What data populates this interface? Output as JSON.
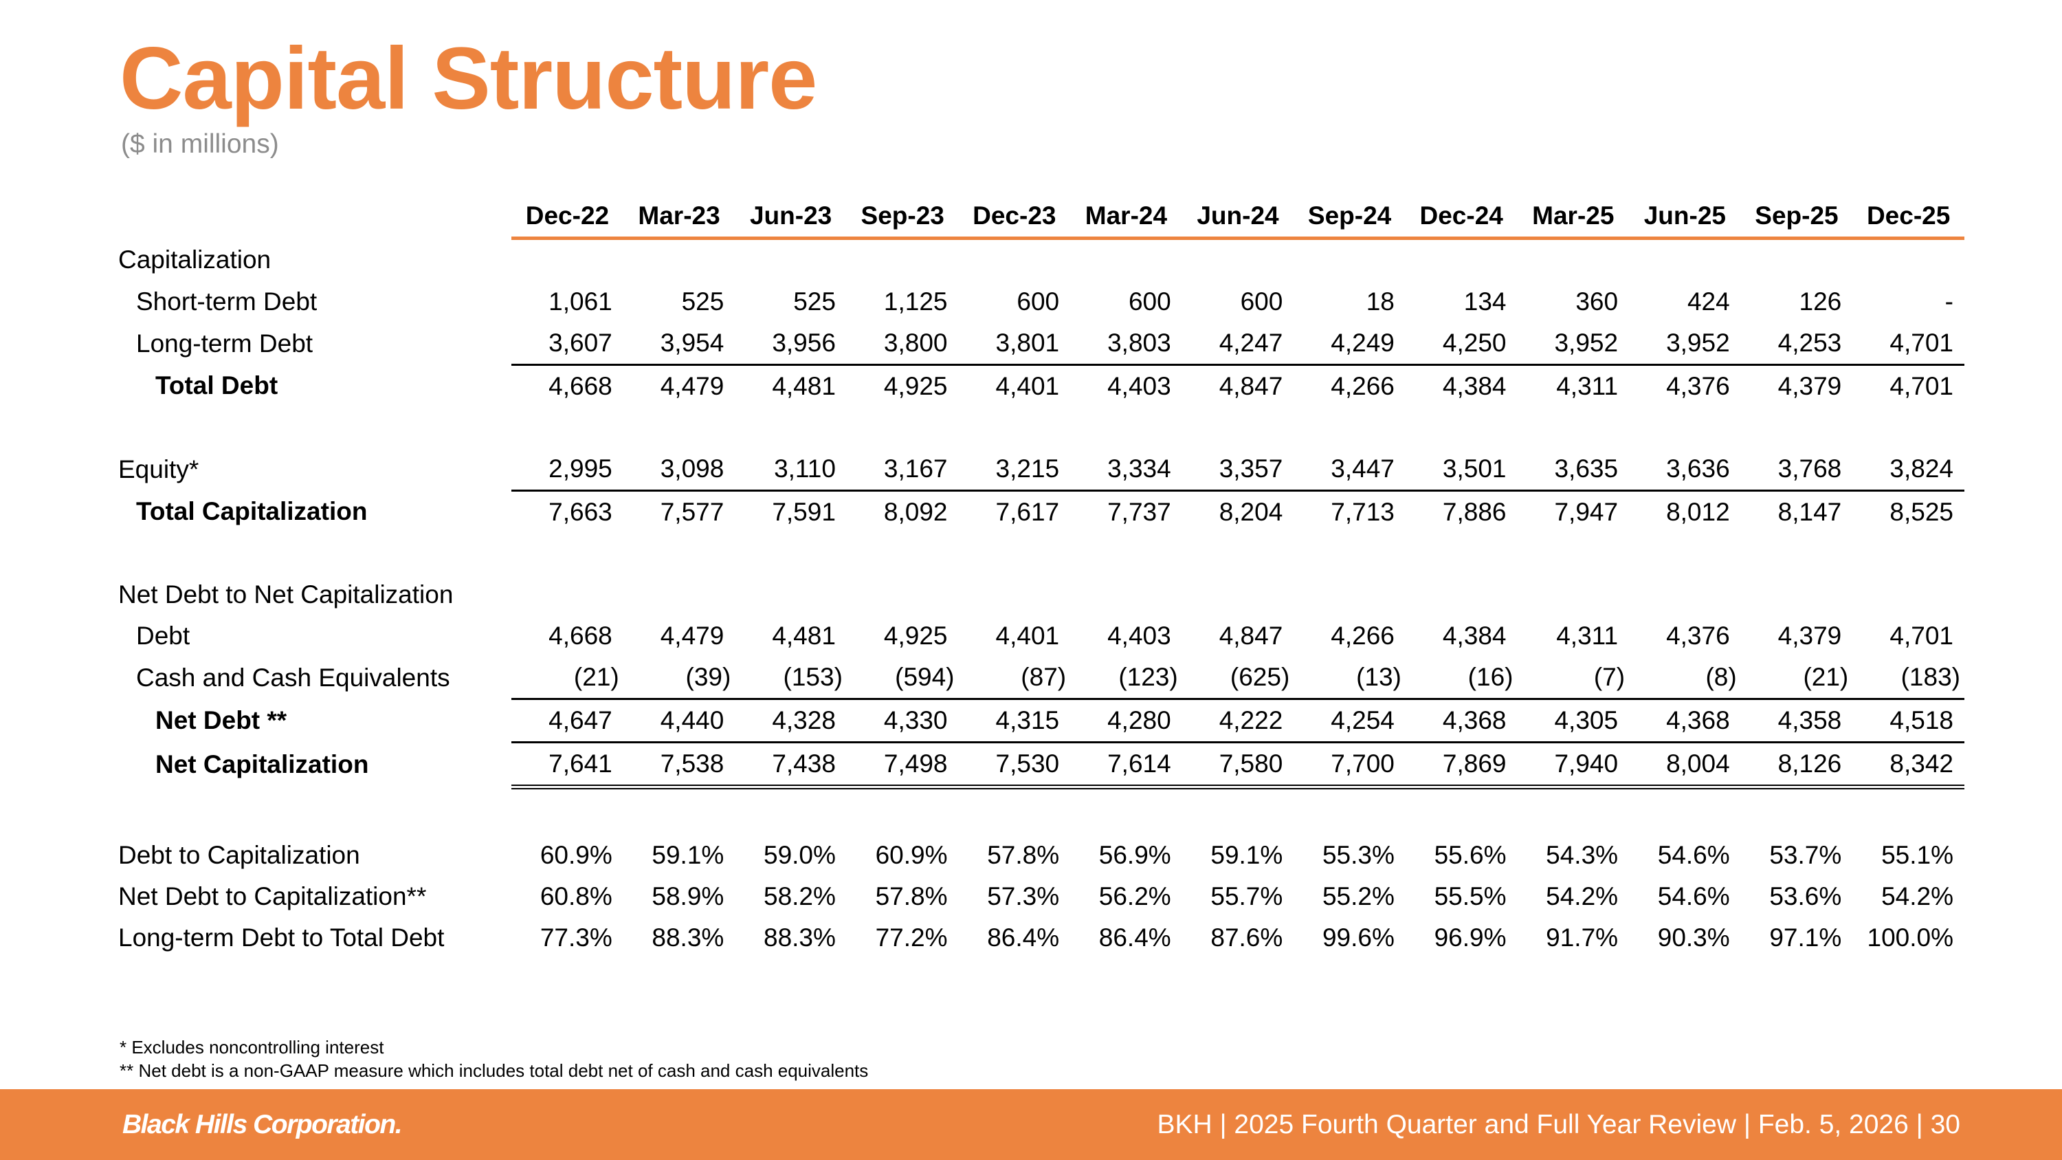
{
  "title": "Capital Structure",
  "subtitle": "($ in millions)",
  "columns": [
    "Dec-22",
    "Mar-23",
    "Jun-23",
    "Sep-23",
    "Dec-23",
    "Mar-24",
    "Jun-24",
    "Sep-24",
    "Dec-24",
    "Mar-25",
    "Jun-25",
    "Sep-25",
    "Dec-25"
  ],
  "rows": [
    {
      "label": "Capitalization",
      "indent": 0,
      "bold": false,
      "values": []
    },
    {
      "label": "Short-term Debt",
      "indent": 1,
      "bold": false,
      "values": [
        "1,061",
        "525",
        "525",
        "1,125",
        "600",
        "600",
        "600",
        "18",
        "134",
        "360",
        "424",
        "126",
        "-"
      ]
    },
    {
      "label": "Long-term Debt",
      "indent": 1,
      "bold": false,
      "values": [
        "3,607",
        "3,954",
        "3,956",
        "3,800",
        "3,801",
        "3,803",
        "4,247",
        "4,249",
        "4,250",
        "3,952",
        "3,952",
        "4,253",
        "4,701"
      ]
    },
    {
      "label": "Total Debt",
      "indent": 2,
      "bold": true,
      "line_top": true,
      "values": [
        "4,668",
        "4,479",
        "4,481",
        "4,925",
        "4,401",
        "4,403",
        "4,847",
        "4,266",
        "4,384",
        "4,311",
        "4,376",
        "4,379",
        "4,701"
      ]
    },
    {
      "spacer": true
    },
    {
      "label": "Equity*",
      "indent": 0,
      "bold": false,
      "values": [
        "2,995",
        "3,098",
        "3,110",
        "3,167",
        "3,215",
        "3,334",
        "3,357",
        "3,447",
        "3,501",
        "3,635",
        "3,636",
        "3,768",
        "3,824"
      ]
    },
    {
      "label": "Total Capitalization",
      "indent": 1,
      "bold": true,
      "line_top": true,
      "values": [
        "7,663",
        "7,577",
        "7,591",
        "8,092",
        "7,617",
        "7,737",
        "8,204",
        "7,713",
        "7,886",
        "7,947",
        "8,012",
        "8,147",
        "8,525"
      ]
    },
    {
      "spacer": true
    },
    {
      "label": "Net Debt to Net Capitalization",
      "indent": 0,
      "bold": false,
      "values": []
    },
    {
      "label": "Debt",
      "indent": 1,
      "bold": false,
      "values": [
        "4,668",
        "4,479",
        "4,481",
        "4,925",
        "4,401",
        "4,403",
        "4,847",
        "4,266",
        "4,384",
        "4,311",
        "4,376",
        "4,379",
        "4,701"
      ]
    },
    {
      "label": "Cash and Cash Equivalents",
      "indent": 1,
      "bold": false,
      "paren": true,
      "values": [
        "(21)",
        "(39)",
        "(153)",
        "(594)",
        "(87)",
        "(123)",
        "(625)",
        "(13)",
        "(16)",
        "(7)",
        "(8)",
        "(21)",
        "(183)"
      ]
    },
    {
      "label": "Net Debt **",
      "indent": 2,
      "bold": true,
      "line_top": true,
      "values": [
        "4,647",
        "4,440",
        "4,328",
        "4,330",
        "4,315",
        "4,280",
        "4,222",
        "4,254",
        "4,368",
        "4,305",
        "4,368",
        "4,358",
        "4,518"
      ]
    },
    {
      "label": "Net Capitalization",
      "indent": 2,
      "bold": true,
      "line_top": true,
      "double_bottom": true,
      "values": [
        "7,641",
        "7,538",
        "7,438",
        "7,498",
        "7,530",
        "7,614",
        "7,580",
        "7,700",
        "7,869",
        "7,940",
        "8,004",
        "8,126",
        "8,342"
      ]
    },
    {
      "spacer": true,
      "tall": true
    },
    {
      "label": "Debt to Capitalization",
      "indent": 0,
      "bold": false,
      "values": [
        "60.9%",
        "59.1%",
        "59.0%",
        "60.9%",
        "57.8%",
        "56.9%",
        "59.1%",
        "55.3%",
        "55.6%",
        "54.3%",
        "54.6%",
        "53.7%",
        "55.1%"
      ]
    },
    {
      "label": "Net Debt to Capitalization**",
      "indent": 0,
      "bold": false,
      "values": [
        "60.8%",
        "58.9%",
        "58.2%",
        "57.8%",
        "57.3%",
        "56.2%",
        "55.7%",
        "55.2%",
        "55.5%",
        "54.2%",
        "54.6%",
        "53.6%",
        "54.2%"
      ]
    },
    {
      "label": "Long-term Debt to Total Debt",
      "indent": 0,
      "bold": false,
      "values": [
        "77.3%",
        "88.3%",
        "88.3%",
        "77.2%",
        "86.4%",
        "86.4%",
        "87.6%",
        "99.6%",
        "96.9%",
        "91.7%",
        "90.3%",
        "97.1%",
        "100.0%"
      ]
    }
  ],
  "footnotes": [
    "* Excludes noncontrolling interest",
    "** Net debt is a non-GAAP measure which includes total debt net of cash and cash equivalents"
  ],
  "footer": {
    "logo": "Black Hills Corporation.",
    "text": "BKH  |  2025 Fourth Quarter and Full Year Review  |  Feb. 5, 2026  |  30"
  },
  "colors": {
    "accent": "#ED843F",
    "subtitle": "#8C8C8C"
  }
}
